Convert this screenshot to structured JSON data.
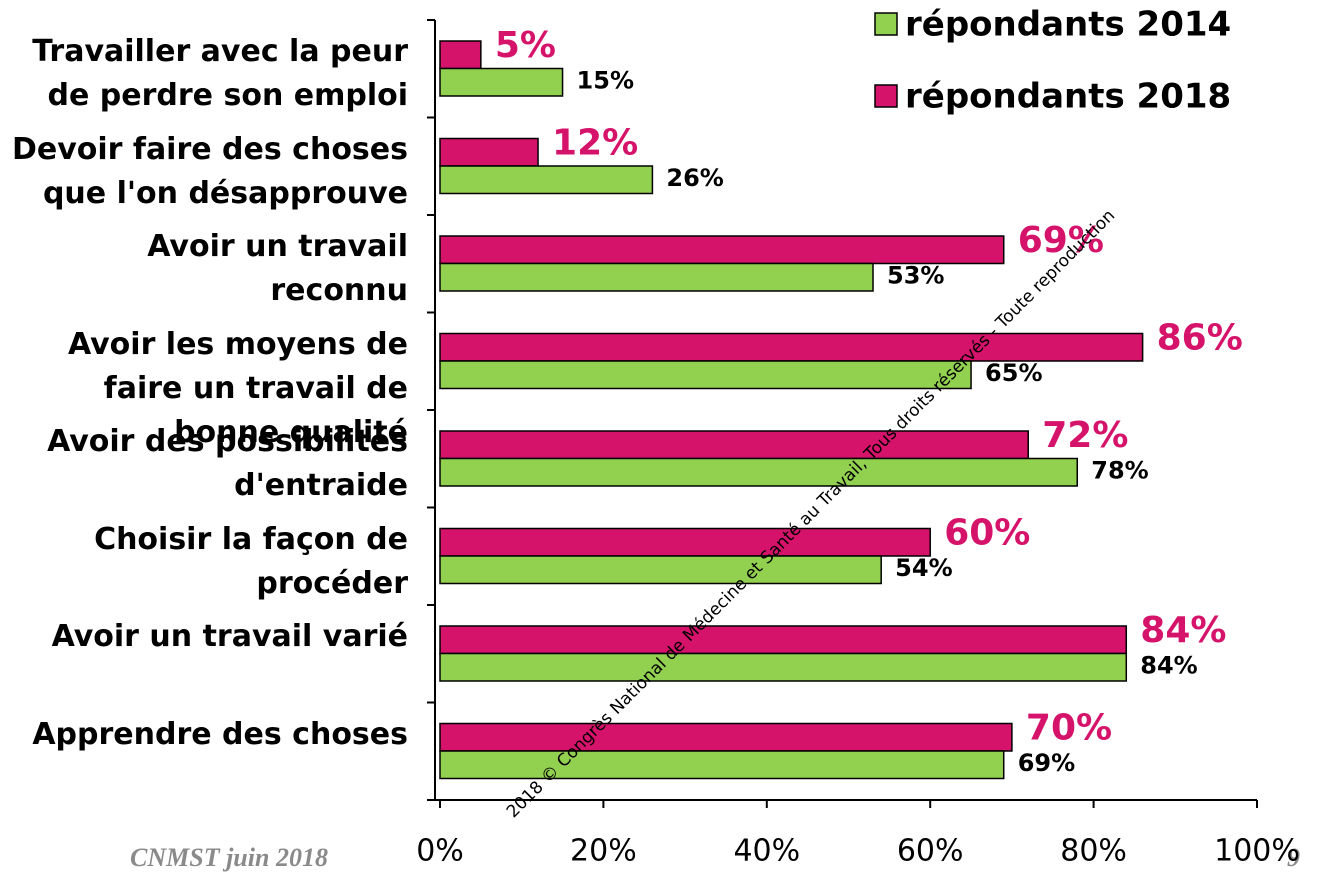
{
  "chart_data": {
    "type": "hbar",
    "categories": [
      "Travailler  avec la peur de perdre son emploi",
      "Devoir faire des choses que l'on désapprouve",
      "Avoir un travail reconnu",
      "Avoir les moyens de faire un travail de bonne qualité",
      "Avoir des possibilités d'entraide",
      "Choisir la façon de procéder",
      "Avoir un travail varié",
      "Apprendre des choses"
    ],
    "series": [
      {
        "name": "répondants 2018",
        "color": "#d6136a",
        "values": [
          5,
          12,
          69,
          86,
          72,
          60,
          84,
          70
        ],
        "value_labels": [
          "5%",
          "12%",
          "69%",
          "86%",
          "72%",
          "60%",
          "84%",
          "70%"
        ]
      },
      {
        "name": "répondants 2014",
        "color": "#92d050",
        "values": [
          15,
          26,
          53,
          65,
          78,
          54,
          84,
          69
        ],
        "value_labels": [
          "15%",
          "26%",
          "53%",
          "65%",
          "78%",
          "54%",
          "84%",
          "69%"
        ]
      }
    ],
    "xlim": [
      0,
      100
    ],
    "xticks": [
      {
        "value": 0,
        "label": "0%"
      },
      {
        "value": 20,
        "label": "20%"
      },
      {
        "value": 40,
        "label": "40%"
      },
      {
        "value": 60,
        "label": "60%"
      },
      {
        "value": 80,
        "label": "80%"
      },
      {
        "value": 100,
        "label": "100%"
      }
    ],
    "legend": "top-right",
    "footer": "CNMST juin 2018",
    "page_number": "9",
    "watermark": "2018 © Congrès National de Médecine et Santé au Travail, Tous droits réservés - Toute reproduction"
  }
}
